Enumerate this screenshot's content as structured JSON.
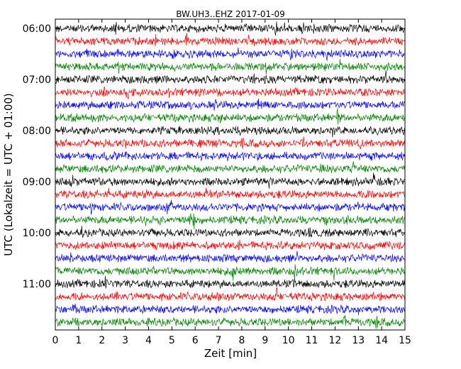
{
  "chart_data": {
    "type": "line",
    "title": "BW.UH3..EHZ 2017-01-09",
    "xlabel": "Zeit  [min]",
    "ylabel": "UTC (Lokalzeit = UTC + 01:00)",
    "xlim": [
      0,
      15
    ],
    "x_ticks": [
      "0",
      "1",
      "2",
      "3",
      "4",
      "5",
      "6",
      "7",
      "8",
      "9",
      "10",
      "11",
      "12",
      "13",
      "14",
      "15"
    ],
    "y_tick_labels": [
      "06:00",
      "07:00",
      "08:00",
      "09:00",
      "10:00",
      "11:00"
    ],
    "trace_count": 24,
    "trace_colors": [
      "#000000",
      "#ff0000",
      "#0000ff",
      "#008000"
    ],
    "trace_interval_min": 15,
    "grid": false,
    "legend": "none"
  }
}
